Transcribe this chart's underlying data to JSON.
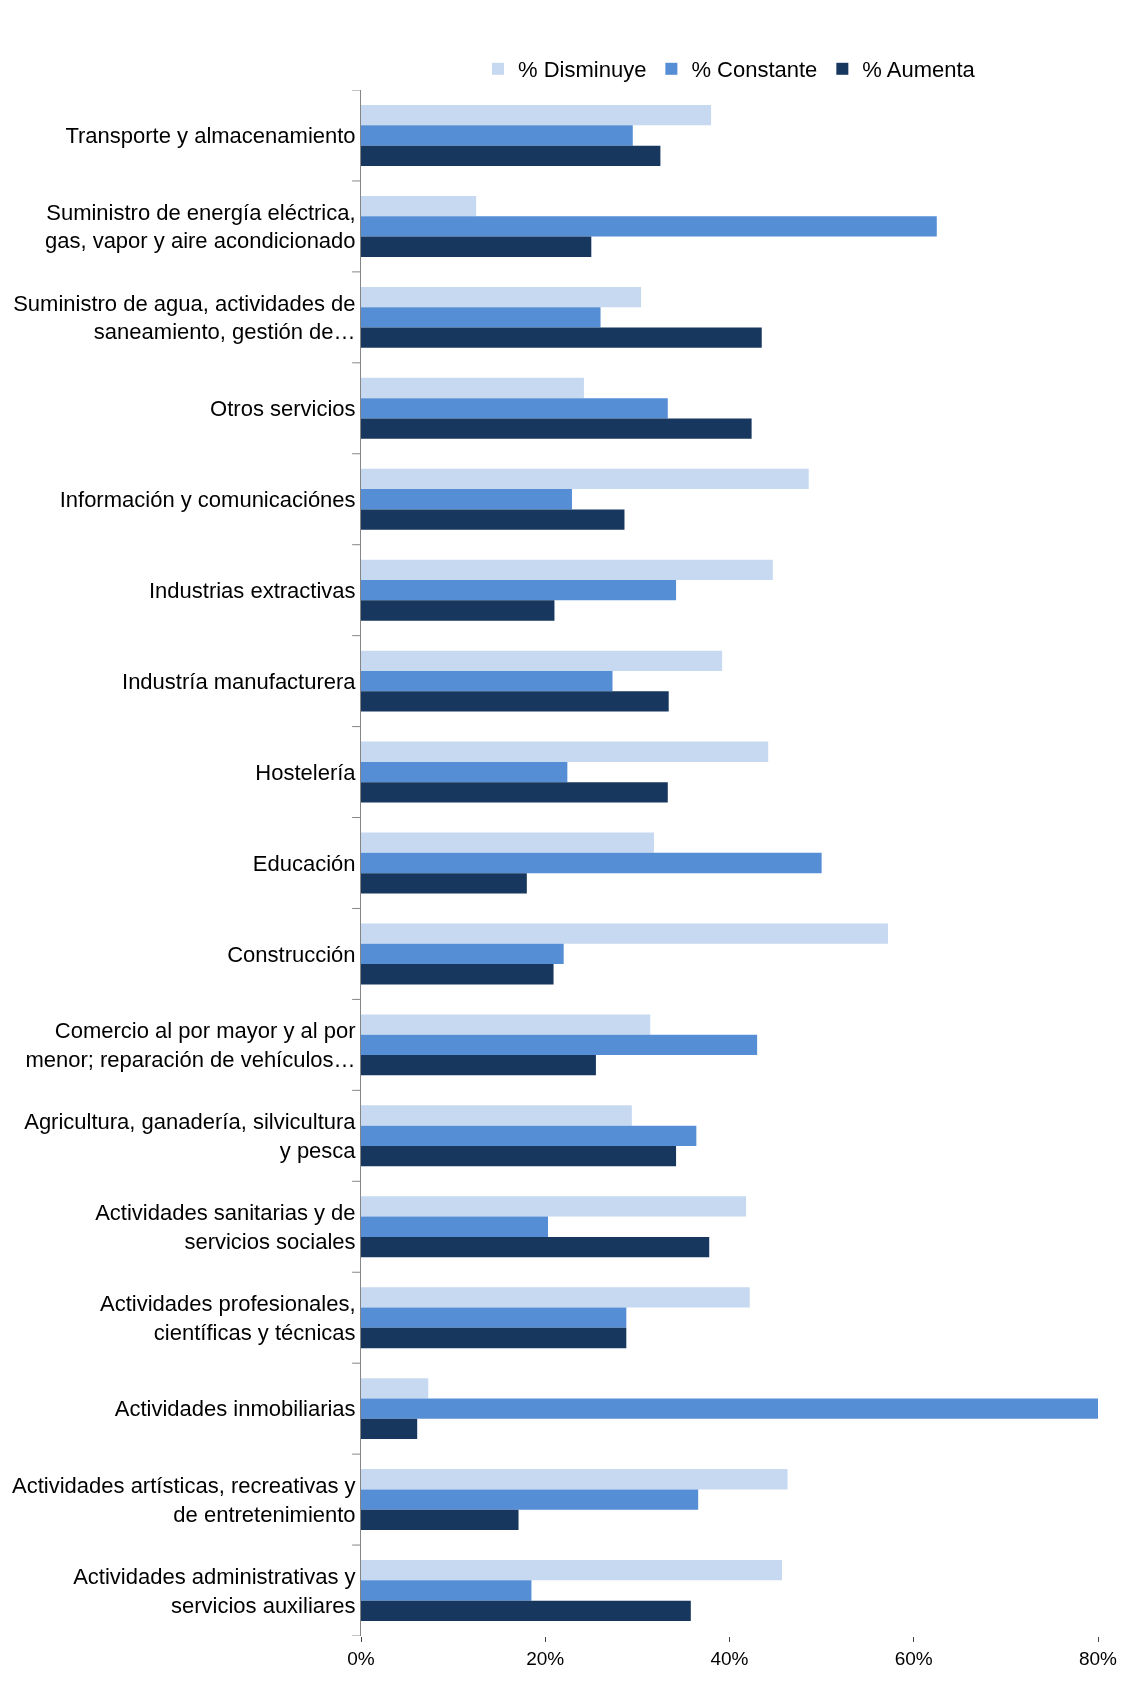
{
  "chart_data": {
    "type": "bar",
    "orientation": "horizontal",
    "categories": [
      "Transporte y almacenamiento",
      "Suministro de energía eléctrica,\ngas, vapor y aire acondicionado",
      "Suministro de agua, actividades de\nsaneamiento, gestión de…",
      "Otros servicios",
      "Información y comunicaciónes",
      "Industrias extractivas",
      "Industría manufacturera",
      "Hostelería",
      "Educación",
      "Construcción",
      "Comercio al por mayor y al por\nmenor; reparación de vehículos…",
      "Agricultura, ganadería, silvicultura\ny pesca",
      "Actividades sanitarias y de\nservicios sociales",
      "Actividades profesionales,\ncientíficas y técnicas",
      "Actividades inmobiliarias",
      "Actividades artísticas, recreativas y\nde entretenimiento",
      "Actividades administrativas y\nservicios auxiliares"
    ],
    "series": [
      {
        "name": "% Disminuye",
        "color": "#c6d9f1",
        "values": [
          38.0,
          12.5,
          30.4,
          24.2,
          48.6,
          44.7,
          39.2,
          44.2,
          31.8,
          57.2,
          31.4,
          29.4,
          41.8,
          42.2,
          7.3,
          46.3,
          45.7
        ]
      },
      {
        "name": "% Constante",
        "color": "#558ed5",
        "values": [
          29.5,
          62.5,
          26.0,
          33.3,
          22.9,
          34.2,
          27.3,
          22.4,
          50.0,
          22.0,
          43.0,
          36.4,
          20.3,
          28.8,
          80.0,
          36.6,
          18.5
        ]
      },
      {
        "name": "% Aumenta",
        "color": "#17375e",
        "values": [
          32.5,
          25.0,
          43.5,
          42.4,
          28.6,
          21.0,
          33.4,
          33.3,
          18.0,
          20.9,
          25.5,
          34.2,
          37.8,
          28.8,
          6.1,
          17.1,
          35.8
        ]
      }
    ],
    "xlim": [
      0,
      80
    ],
    "xticks": [
      {
        "value": 0,
        "label": "0%"
      },
      {
        "value": 20,
        "label": "20%"
      },
      {
        "value": 40,
        "label": "40%"
      },
      {
        "value": 60,
        "label": "60%"
      },
      {
        "value": 80,
        "label": "80%"
      }
    ],
    "grid": false,
    "legend": "top"
  }
}
